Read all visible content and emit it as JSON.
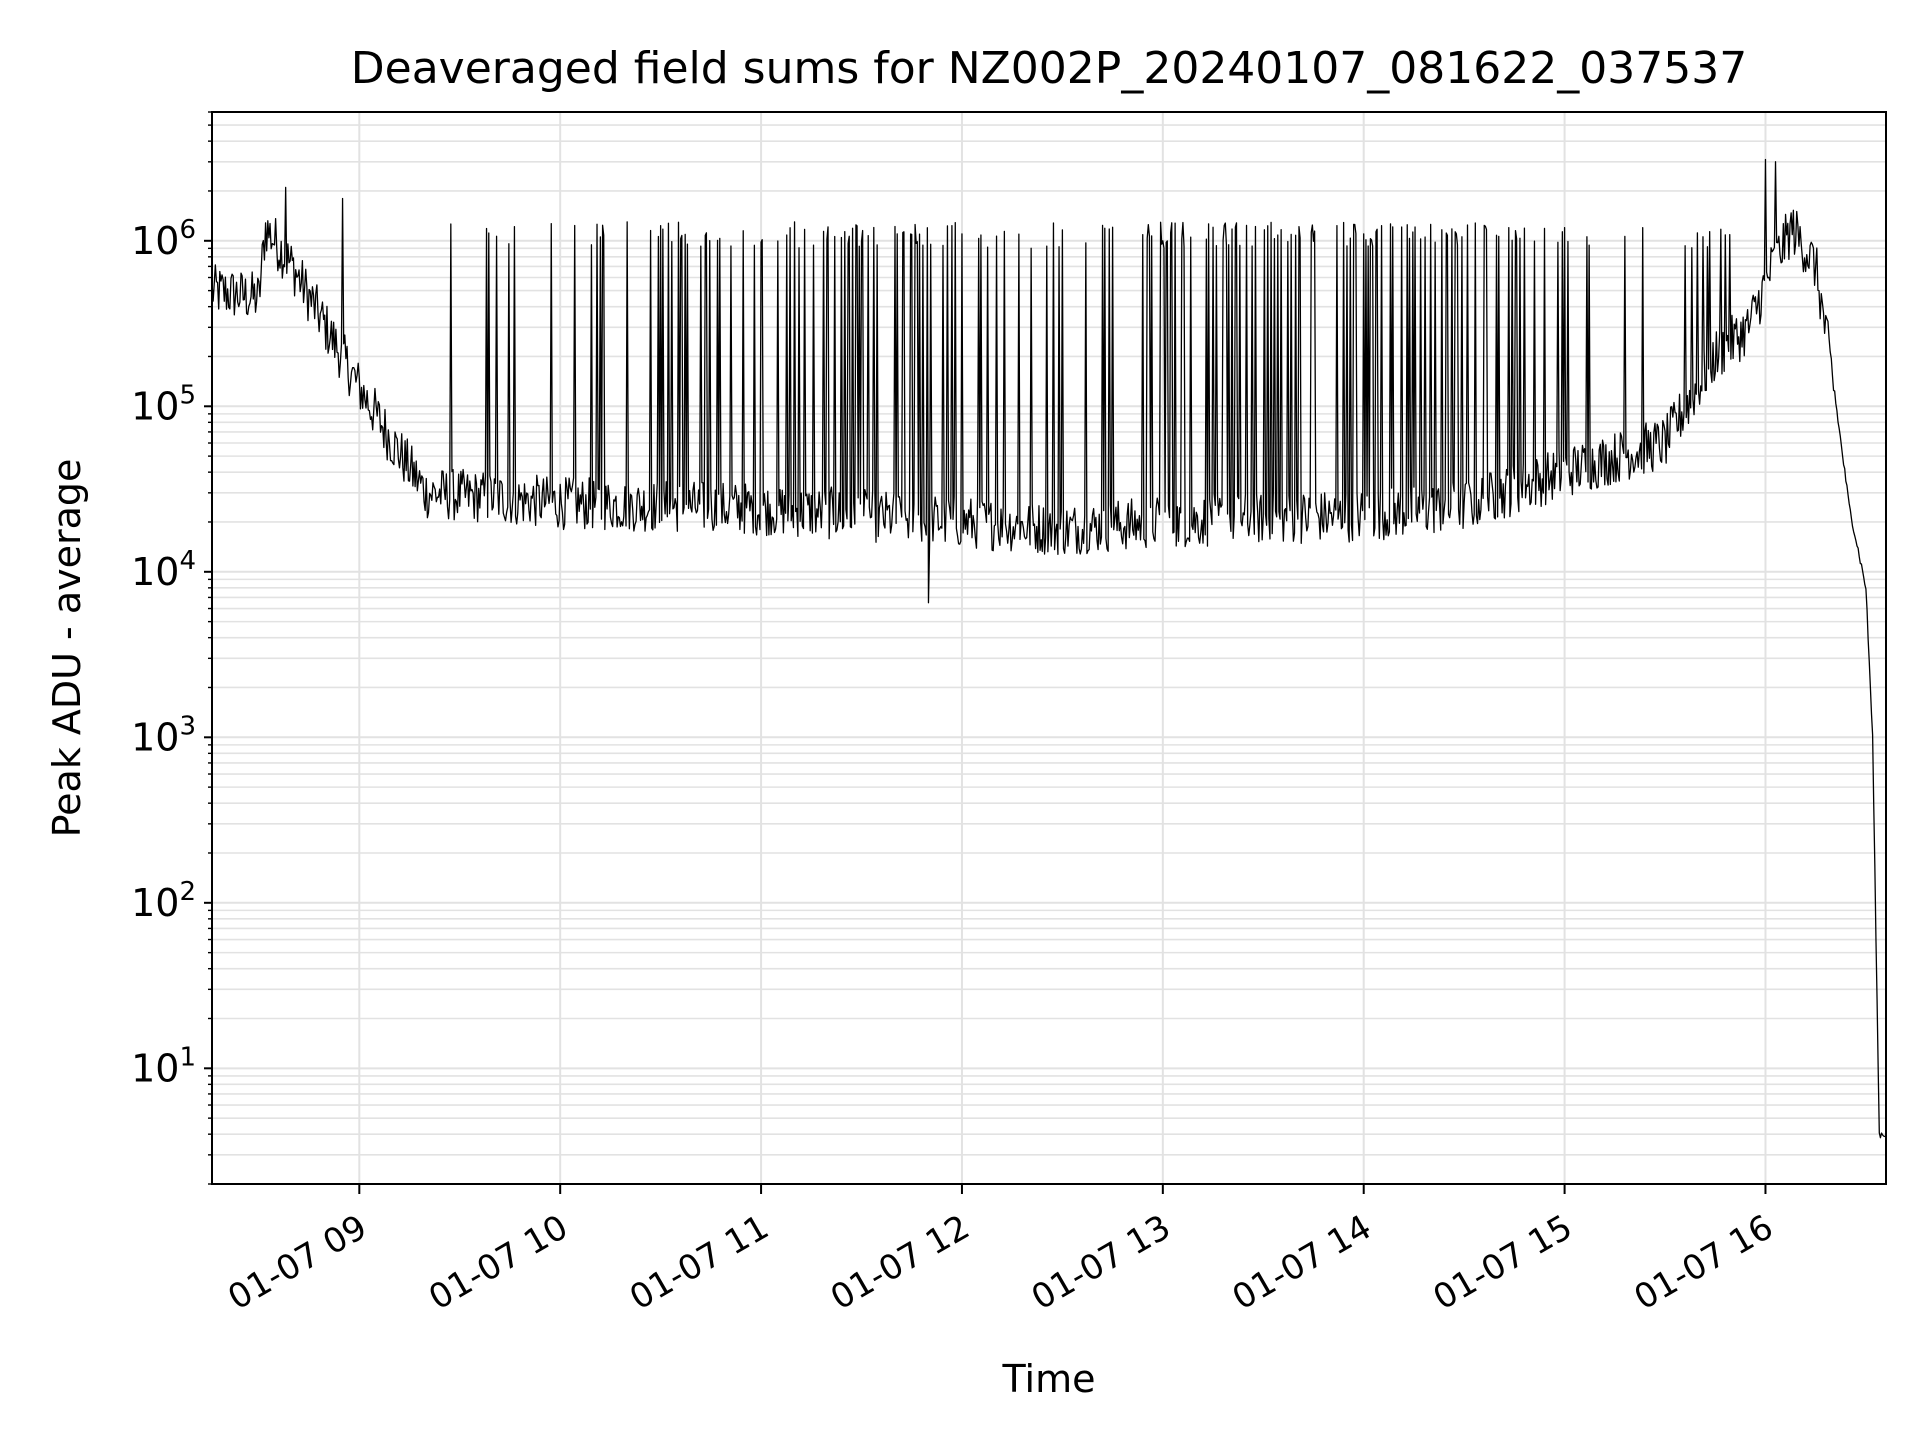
{
  "chart_data": {
    "type": "line",
    "title": "Deaveraged field sums for NZ002P_20240107_081622_037537",
    "xlabel": "Time",
    "ylabel": "Peak ADU - average",
    "x_axis": {
      "scale": "time",
      "range": [
        "2024-01-07 08:16",
        "2024-01-07 16:36"
      ],
      "ticks": [
        "01-07 09",
        "01-07 10",
        "01-07 11",
        "01-07 12",
        "01-07 13",
        "01-07 14",
        "01-07 15",
        "01-07 16"
      ],
      "tick_label_rotation_deg": 30
    },
    "y_axis": {
      "scale": "log",
      "range": [
        2,
        6000000
      ],
      "ticks": [
        {
          "base": "10",
          "exp": "1"
        },
        {
          "base": "10",
          "exp": "2"
        },
        {
          "base": "10",
          "exp": "3"
        },
        {
          "base": "10",
          "exp": "4"
        },
        {
          "base": "10",
          "exp": "5"
        },
        {
          "base": "10",
          "exp": "6"
        }
      ]
    },
    "grid": true,
    "legend": "none",
    "colors": {
      "line": "#000000",
      "grid": "#e2e2e2",
      "axes": "#000000"
    },
    "series": [
      {
        "baseline": [
          [
            "2024-01-07 08:16",
            500000
          ],
          [
            "2024-01-07 08:30",
            450000
          ],
          [
            "2024-01-07 08:32",
            1200000
          ],
          [
            "2024-01-07 08:40",
            700000
          ],
          [
            "2024-01-07 08:50",
            300000
          ],
          [
            "2024-01-07 09:00",
            130000
          ],
          [
            "2024-01-07 09:10",
            60000
          ],
          [
            "2024-01-07 09:20",
            30000
          ],
          [
            "2024-01-07 09:40",
            28000
          ],
          [
            "2024-01-07 10:00",
            26000
          ],
          [
            "2024-01-07 11:00",
            24000
          ],
          [
            "2024-01-07 12:00",
            20000
          ],
          [
            "2024-01-07 12:30",
            18000
          ],
          [
            "2024-01-07 13:00",
            20000
          ],
          [
            "2024-01-07 14:00",
            22000
          ],
          [
            "2024-01-07 14:30",
            25000
          ],
          [
            "2024-01-07 15:00",
            40000
          ],
          [
            "2024-01-07 15:30",
            60000
          ],
          [
            "2024-01-07 15:45",
            200000
          ],
          [
            "2024-01-07 15:55",
            300000
          ],
          [
            "2024-01-07 16:02",
            700000
          ],
          [
            "2024-01-07 16:08",
            1200000
          ],
          [
            "2024-01-07 16:15",
            700000
          ],
          [
            "2024-01-07 16:20",
            150000
          ],
          [
            "2024-01-07 16:25",
            25000
          ],
          [
            "2024-01-07 16:30",
            8000
          ],
          [
            "2024-01-07 16:32",
            1000
          ],
          [
            "2024-01-07 16:34",
            4
          ],
          [
            "2024-01-07 16:36",
            4
          ]
        ],
        "spike_peaks": [
          [
            "2024-01-07 08:38",
            2100000
          ],
          [
            "2024-01-07 08:55",
            1800000
          ],
          [
            "2024-01-07 10:20",
            1300000
          ],
          [
            "2024-01-07 11:10",
            1300000
          ],
          [
            "2024-01-07 12:00",
            1100000
          ],
          [
            "2024-01-07 13:00",
            1000000
          ],
          [
            "2024-01-07 14:00",
            1100000
          ],
          [
            "2024-01-07 15:00",
            1200000
          ],
          [
            "2024-01-07 16:00",
            3100000
          ],
          [
            "2024-01-07 16:03",
            3000000
          ]
        ],
        "spike_peak_range": [
          900000,
          1300000
        ],
        "minimum": [
          "2024-01-07 11:50",
          6500
        ]
      }
    ]
  }
}
